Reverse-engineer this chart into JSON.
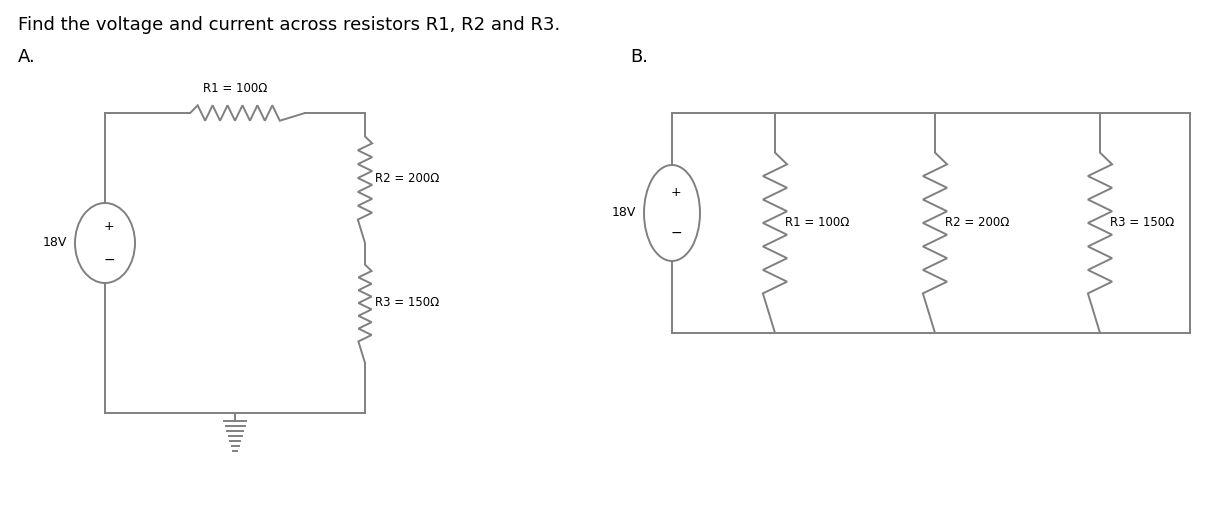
{
  "title": "Find the voltage and current across resistors R1, R2 and R3.",
  "label_A": "A.",
  "label_B": "B.",
  "voltage": "18V",
  "circ_A": {
    "R1_label": "R1 = 100Ω",
    "R2_label": "R2 = 200Ω",
    "R3_label": "R3 = 150Ω"
  },
  "circ_B": {
    "R1_label": "R1 = 100Ω",
    "R2_label": "R2 = 200Ω",
    "R3_label": "R3 = 150Ω"
  },
  "line_color": "#808080",
  "bg_color": "#ffffff",
  "title_fontsize": 13,
  "label_fontsize": 13,
  "component_fontsize": 8.5
}
